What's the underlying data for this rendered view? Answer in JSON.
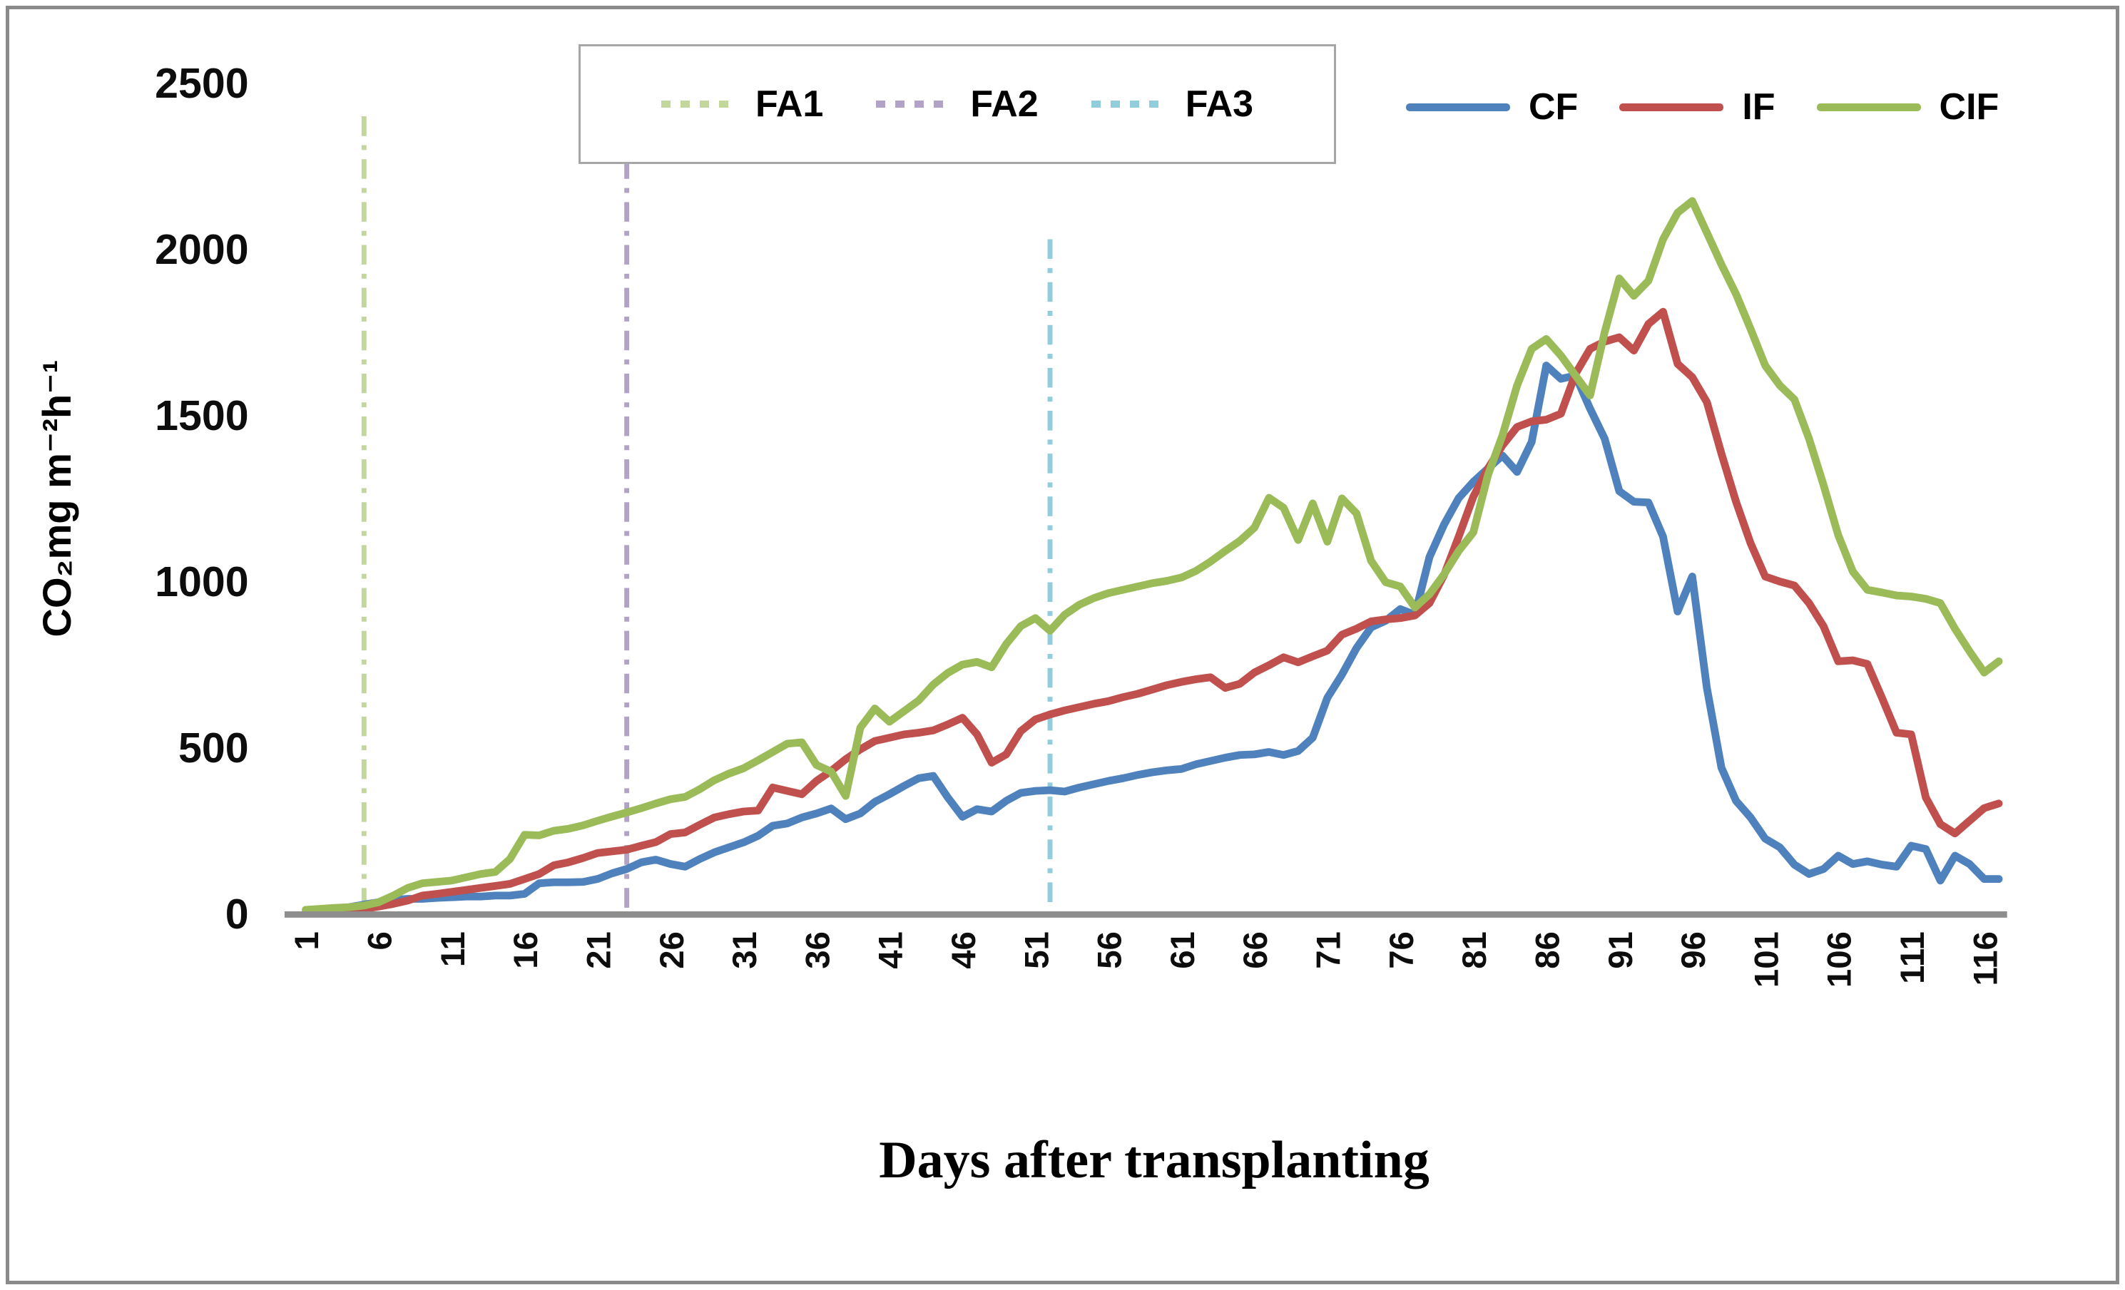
{
  "chart_data": {
    "type": "line",
    "xlabel": "Days after transplanting",
    "ylabel": "CO₂mg m⁻²h⁻¹",
    "x_ticks": [
      1,
      6,
      11,
      16,
      21,
      26,
      31,
      36,
      41,
      46,
      51,
      56,
      61,
      66,
      71,
      76,
      81,
      86,
      91,
      96,
      101,
      106,
      111,
      116
    ],
    "y_ticks": [
      0,
      500,
      1000,
      1500,
      2000,
      2500
    ],
    "xlim": [
      1,
      117.5
    ],
    "ylim": [
      0,
      2500
    ],
    "grid": false,
    "legend_position": "top",
    "event_lines": [
      {
        "name": "FA1",
        "day": 5,
        "color": "#c3d69b",
        "top_value": 2400
      },
      {
        "name": "FA2",
        "day": 23,
        "color": "#b2a2c7",
        "top_value": 2400
      },
      {
        "name": "FA3",
        "day": 52,
        "color": "#92cddc",
        "top_value": 2030
      }
    ],
    "series": [
      {
        "name": "CF",
        "color": "#4f81bd",
        "start_day": 1,
        "values": [
          5,
          10,
          15,
          20,
          28,
          35,
          42,
          45,
          45,
          48,
          50,
          52,
          52,
          55,
          55,
          60,
          92,
          95,
          95,
          96,
          105,
          122,
          135,
          155,
          163,
          150,
          142,
          165,
          185,
          200,
          215,
          235,
          265,
          272,
          290,
          302,
          317,
          285,
          302,
          337,
          360,
          385,
          408,
          415,
          350,
          292,
          315,
          308,
          340,
          364,
          370,
          372,
          368,
          380,
          390,
          400,
          408,
          418,
          426,
          432,
          436,
          450,
          460,
          470,
          478,
          480,
          487,
          478,
          490,
          530,
          650,
          720,
          800,
          862,
          882,
          917,
          900,
          1074,
          1172,
          1251,
          1300,
          1340,
          1379,
          1330,
          1420,
          1650,
          1610,
          1620,
          1520,
          1430,
          1272,
          1240,
          1238,
          1135,
          910,
          1015,
          680,
          440,
          340,
          290,
          226,
          200,
          148,
          120,
          135,
          175,
          150,
          158,
          148,
          142,
          205,
          195,
          100,
          175,
          150,
          105,
          105
        ]
      },
      {
        "name": "IF",
        "color": "#c0504d",
        "start_day": 1,
        "values": [
          2,
          5,
          8,
          10,
          15,
          22,
          30,
          40,
          55,
          60,
          66,
          72,
          78,
          84,
          90,
          105,
          120,
          146,
          155,
          168,
          183,
          188,
          193,
          205,
          216,
          240,
          245,
          268,
          290,
          300,
          308,
          311,
          380,
          370,
          360,
          400,
          430,
          465,
          495,
          520,
          530,
          540,
          545,
          552,
          570,
          590,
          540,
          455,
          480,
          550,
          585,
          600,
          612,
          622,
          632,
          640,
          652,
          662,
          675,
          688,
          698,
          706,
          712,
          680,
          692,
          726,
          748,
          772,
          757,
          775,
          792,
          840,
          858,
          880,
          886,
          890,
          898,
          935,
          1020,
          1135,
          1255,
          1340,
          1410,
          1465,
          1482,
          1487,
          1505,
          1625,
          1700,
          1722,
          1735,
          1695,
          1775,
          1812,
          1655,
          1615,
          1540,
          1385,
          1240,
          1115,
          1015,
          1000,
          988,
          935,
          865,
          760,
          763,
          752,
          650,
          545,
          540,
          350,
          270,
          242,
          280,
          318,
          332
        ]
      },
      {
        "name": "CIF",
        "color": "#9bbb59",
        "start_day": 1,
        "values": [
          12,
          15,
          18,
          20,
          25,
          35,
          55,
          78,
          92,
          96,
          100,
          110,
          120,
          126,
          165,
          238,
          236,
          250,
          256,
          266,
          280,
          293,
          305,
          318,
          332,
          345,
          352,
          375,
          402,
          422,
          438,
          462,
          487,
          512,
          516,
          448,
          428,
          355,
          560,
          618,
          578,
          610,
          642,
          690,
          725,
          750,
          758,
          742,
          812,
          866,
          890,
          852,
          900,
          930,
          950,
          965,
          975,
          985,
          995,
          1002,
          1012,
          1032,
          1060,
          1092,
          1122,
          1162,
          1252,
          1222,
          1125,
          1235,
          1120,
          1250,
          1205,
          1062,
          998,
          985,
          922,
          962,
          1022,
          1092,
          1148,
          1320,
          1440,
          1590,
          1700,
          1730,
          1680,
          1620,
          1560,
          1750,
          1912,
          1860,
          1905,
          2030,
          2110,
          2145,
          2050,
          1954,
          1865,
          1760,
          1650,
          1590,
          1548,
          1430,
          1290,
          1140,
          1030,
          975,
          967,
          958,
          955,
          948,
          935,
          858,
          790,
          726,
          760
        ]
      }
    ]
  },
  "fa_legend": {
    "items": [
      {
        "label": "FA1",
        "color": "#c3d69b"
      },
      {
        "label": "FA2",
        "color": "#b2a2c7"
      },
      {
        "label": "FA3",
        "color": "#92cddc"
      }
    ]
  },
  "series_legend": {
    "items": [
      {
        "label": "CF",
        "color": "#4f81bd"
      },
      {
        "label": "IF",
        "color": "#c0504d"
      },
      {
        "label": "CIF",
        "color": "#9bbb59"
      }
    ]
  },
  "colors": {
    "axis_line": "#8e8e8e",
    "text": "#0d0d0d"
  }
}
